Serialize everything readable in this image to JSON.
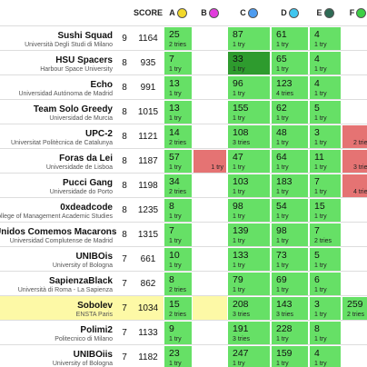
{
  "header": {
    "score": "SCORE",
    "problems": [
      {
        "letter": "A",
        "color": "#f2d82a"
      },
      {
        "letter": "B",
        "color": "#e13ddc"
      },
      {
        "letter": "C",
        "color": "#4d9cf0"
      },
      {
        "letter": "D",
        "color": "#3fc6ef"
      },
      {
        "letter": "E",
        "color": "#2e6b55"
      },
      {
        "letter": "F",
        "color": "#3dcf45"
      }
    ]
  },
  "rows": [
    {
      "team": "Sushi Squad",
      "university": "Università Degli Studi di Milano",
      "solved": "9",
      "score": "1164",
      "problems": [
        {
          "time": "25",
          "tries": "2 tries",
          "status": "solved"
        },
        null,
        {
          "time": "87",
          "tries": "1 try",
          "status": "solved"
        },
        {
          "time": "61",
          "tries": "1 try",
          "status": "solved"
        },
        {
          "time": "4",
          "tries": "1 try",
          "status": "solved"
        },
        null
      ]
    },
    {
      "team": "HSU Spacers",
      "university": "Harbour Space University",
      "solved": "8",
      "score": "935",
      "problems": [
        {
          "time": "7",
          "tries": "1 try",
          "status": "solved"
        },
        null,
        {
          "time": "33",
          "tries": "1 try",
          "status": "first"
        },
        {
          "time": "65",
          "tries": "1 try",
          "status": "solved"
        },
        {
          "time": "4",
          "tries": "1 try",
          "status": "solved"
        },
        null
      ]
    },
    {
      "team": "Echo",
      "university": "Universidad Autónoma de Madrid",
      "solved": "8",
      "score": "991",
      "problems": [
        {
          "time": "13",
          "tries": "1 try",
          "status": "solved"
        },
        null,
        {
          "time": "96",
          "tries": "1 try",
          "status": "solved"
        },
        {
          "time": "123",
          "tries": "4 tries",
          "status": "solved"
        },
        {
          "time": "4",
          "tries": "1 try",
          "status": "solved"
        },
        null
      ]
    },
    {
      "team": "Team Solo Greedy",
      "university": "Universidad de Murcia",
      "solved": "8",
      "score": "1015",
      "problems": [
        {
          "time": "13",
          "tries": "1 try",
          "status": "solved"
        },
        null,
        {
          "time": "155",
          "tries": "1 try",
          "status": "solved"
        },
        {
          "time": "62",
          "tries": "1 try",
          "status": "solved"
        },
        {
          "time": "5",
          "tries": "1 try",
          "status": "solved"
        },
        null
      ]
    },
    {
      "team": "UPC-2",
      "university": "Universitat Politècnica de Catalunya",
      "solved": "8",
      "score": "1121",
      "problems": [
        {
          "time": "14",
          "tries": "2 tries",
          "status": "solved"
        },
        null,
        {
          "time": "108",
          "tries": "3 tries",
          "status": "solved"
        },
        {
          "time": "48",
          "tries": "1 try",
          "status": "solved"
        },
        {
          "time": "3",
          "tries": "1 try",
          "status": "solved"
        },
        {
          "tries": "2 tries",
          "status": "failed"
        }
      ]
    },
    {
      "team": "Foras da Lei",
      "university": "Universidade de Lisboa",
      "solved": "8",
      "score": "1187",
      "problems": [
        {
          "time": "57",
          "tries": "1 try",
          "status": "solved"
        },
        {
          "tries": "1 try",
          "status": "failed"
        },
        {
          "time": "47",
          "tries": "1 try",
          "status": "solved"
        },
        {
          "time": "64",
          "tries": "1 try",
          "status": "solved"
        },
        {
          "time": "11",
          "tries": "1 try",
          "status": "solved"
        },
        {
          "tries": "3 tries",
          "status": "failed"
        }
      ]
    },
    {
      "team": "Pucci Gang",
      "university": "Universidade do Porto",
      "solved": "8",
      "score": "1198",
      "problems": [
        {
          "time": "34",
          "tries": "2 tries",
          "status": "solved"
        },
        null,
        {
          "time": "103",
          "tries": "1 try",
          "status": "solved"
        },
        {
          "time": "183",
          "tries": "1 try",
          "status": "solved"
        },
        {
          "time": "7",
          "tries": "1 try",
          "status": "solved"
        },
        {
          "tries": "4 tries",
          "status": "failed"
        }
      ]
    },
    {
      "team": "0xdeadcode",
      "university": "The College of Management Academic Studies",
      "solved": "8",
      "score": "1235",
      "problems": [
        {
          "time": "8",
          "tries": "1 try",
          "status": "solved"
        },
        null,
        {
          "time": "98",
          "tries": "1 try",
          "status": "solved"
        },
        {
          "time": "54",
          "tries": "1 try",
          "status": "solved"
        },
        {
          "time": "15",
          "tries": "1 try",
          "status": "solved"
        },
        null
      ]
    },
    {
      "team": "Unidos Comemos Macarons",
      "university": "Universidad Complutense de Madrid",
      "solved": "8",
      "score": "1315",
      "problems": [
        {
          "time": "7",
          "tries": "1 try",
          "status": "solved"
        },
        null,
        {
          "time": "139",
          "tries": "1 try",
          "status": "solved"
        },
        {
          "time": "98",
          "tries": "1 try",
          "status": "solved"
        },
        {
          "time": "7",
          "tries": "2 tries",
          "status": "solved"
        },
        null
      ]
    },
    {
      "team": "UNIBOis",
      "university": "University of Bologna",
      "solved": "7",
      "score": "661",
      "problems": [
        {
          "time": "10",
          "tries": "1 try",
          "status": "solved"
        },
        null,
        {
          "time": "133",
          "tries": "1 try",
          "status": "solved"
        },
        {
          "time": "73",
          "tries": "1 try",
          "status": "solved"
        },
        {
          "time": "5",
          "tries": "1 try",
          "status": "solved"
        },
        null
      ]
    },
    {
      "team": "SapienzaBlack",
      "university": "Università di Roma - La Sapienza",
      "solved": "7",
      "score": "862",
      "problems": [
        {
          "time": "8",
          "tries": "2 tries",
          "status": "solved"
        },
        null,
        {
          "time": "79",
          "tries": "1 try",
          "status": "solved"
        },
        {
          "time": "69",
          "tries": "1 try",
          "status": "solved"
        },
        {
          "time": "6",
          "tries": "1 try",
          "status": "solved"
        },
        null
      ]
    },
    {
      "team": "Sobolev",
      "university": "ENSTA Paris",
      "solved": "7",
      "score": "1034",
      "highlight": true,
      "problems": [
        {
          "time": "15",
          "tries": "2 tries",
          "status": "solved"
        },
        null,
        {
          "time": "208",
          "tries": "3 tries",
          "status": "solved"
        },
        {
          "time": "143",
          "tries": "3 tries",
          "status": "solved"
        },
        {
          "time": "3",
          "tries": "1 try",
          "status": "solved"
        },
        {
          "time": "259",
          "tries": "2 tries",
          "status": "solved"
        }
      ]
    },
    {
      "team": "Polimi2",
      "university": "Politecnico di Milano",
      "solved": "7",
      "score": "1133",
      "problems": [
        {
          "time": "9",
          "tries": "1 try",
          "status": "solved"
        },
        null,
        {
          "time": "191",
          "tries": "3 tries",
          "status": "solved"
        },
        {
          "time": "228",
          "tries": "1 try",
          "status": "solved"
        },
        {
          "time": "8",
          "tries": "1 try",
          "status": "solved"
        },
        null
      ]
    },
    {
      "team": "UNIBOiis",
      "university": "University of Bologna",
      "solved": "7",
      "score": "1182",
      "problems": [
        {
          "time": "23",
          "tries": "1 try",
          "status": "solved"
        },
        null,
        {
          "time": "247",
          "tries": "1 try",
          "status": "solved"
        },
        {
          "time": "159",
          "tries": "1 try",
          "status": "solved"
        },
        {
          "time": "4",
          "tries": "1 try",
          "status": "solved"
        },
        null
      ]
    }
  ]
}
